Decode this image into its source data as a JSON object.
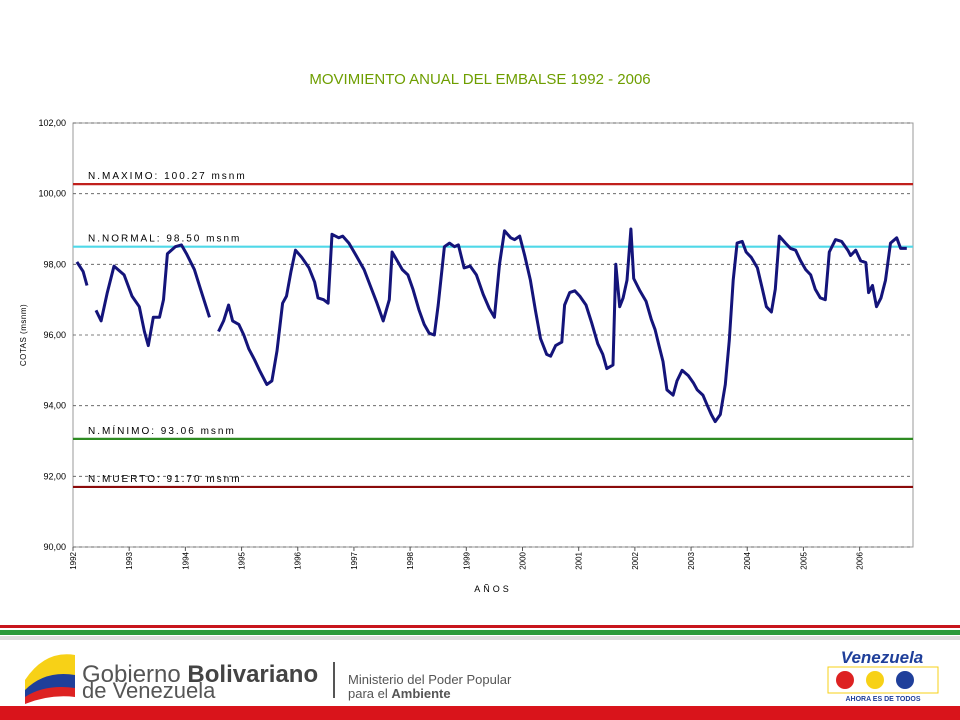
{
  "chart_data": {
    "type": "line",
    "title": "MOVIMIENTO ANUAL DEL EMBALSE 1992 - 2006",
    "xlabel": "AÑOS",
    "ylabel": "COTAS (msnm)",
    "xlim": [
      1992,
      2006.95
    ],
    "xticks": [
      1992,
      1993,
      1994,
      1995,
      1996,
      1997,
      1998,
      1999,
      2000,
      2001,
      2002,
      2003,
      2004,
      2005,
      2006
    ],
    "ylim": [
      90,
      102
    ],
    "yticks": [
      {
        "value": 90,
        "label": "90,00"
      },
      {
        "value": 92,
        "label": "92,00"
      },
      {
        "value": 94,
        "label": "94,00"
      },
      {
        "value": 96,
        "label": "96,00"
      },
      {
        "value": 98,
        "label": "98,00"
      },
      {
        "value": 100,
        "label": "100,00"
      },
      {
        "value": 102,
        "label": "102,00"
      }
    ],
    "grid": true,
    "reference_lines": [
      {
        "label": "N.MAXIMO: 100.27 msnm",
        "value": 100.27,
        "color": "#c0201c"
      },
      {
        "label": "N.NORMAL: 98.50 msnm",
        "value": 98.5,
        "color": "#4fd8e8"
      },
      {
        "label": "N.MÍNIMO: 93.06 msnm",
        "value": 93.06,
        "color": "#2e8b22"
      },
      {
        "label": "N.MUERTO: 91.70 msnm",
        "value": 91.7,
        "color": "#8b0a0a"
      }
    ],
    "series": [
      {
        "color": "#14147a",
        "x": [
          1992.07,
          1992.18,
          1992.25,
          null,
          1992.41,
          1992.5,
          1992.61,
          1992.73,
          1992.91,
          1993.05,
          1993.18,
          1993.27,
          1993.34,
          1993.43,
          1993.54,
          1993.61,
          1993.68,
          1993.82,
          1993.93,
          1994.02,
          1994.16,
          1994.27,
          1994.43,
          null,
          1994.59,
          1994.68,
          1994.77,
          1994.84,
          1994.95,
          1995.04,
          1995.13,
          1995.23,
          1995.32,
          1995.45,
          1995.54,
          1995.63,
          1995.73,
          1995.8,
          1995.88,
          1995.96,
          1996.07,
          1996.2,
          1996.3,
          1996.36,
          1996.46,
          1996.54,
          1996.61,
          1996.73,
          1996.8,
          1996.91,
          1997.02,
          1997.18,
          1997.29,
          1997.41,
          1997.52,
          1997.63,
          1997.68,
          1997.79,
          1997.86,
          1997.96,
          1998.05,
          1998.16,
          1998.25,
          1998.34,
          1998.43,
          1998.5,
          1998.61,
          1998.7,
          1998.79,
          1998.86,
          1998.96,
          1999.07,
          1999.18,
          1999.3,
          1999.41,
          1999.5,
          1999.59,
          1999.68,
          1999.79,
          1999.86,
          1999.95,
          2000.04,
          2000.14,
          2000.23,
          2000.32,
          2000.43,
          2000.5,
          2000.59,
          2000.7,
          2000.75,
          2000.84,
          2000.93,
          2001.02,
          2001.13,
          2001.23,
          2001.34,
          2001.43,
          2001.5,
          2001.61,
          2001.66,
          2001.73,
          2001.79,
          2001.86,
          2001.93,
          2001.98,
          2002.09,
          2002.2,
          2002.29,
          2002.36,
          2002.43,
          2002.5,
          2002.57,
          2002.68,
          2002.75,
          2002.84,
          2002.95,
          2003.04,
          2003.11,
          2003.21,
          2003.29,
          2003.36,
          2003.43,
          2003.52,
          2003.61,
          2003.68,
          2003.75,
          2003.82,
          2003.91,
          2003.98,
          2004.07,
          2004.18,
          2004.27,
          2004.34,
          2004.43,
          2004.5,
          2004.57,
          2004.68,
          2004.77,
          2004.86,
          2004.95,
          2005.04,
          2005.13,
          2005.21,
          2005.3,
          2005.39,
          2005.46,
          2005.57,
          2005.68,
          2005.79,
          2005.84,
          2005.93,
          2006.02,
          2006.11,
          2006.16,
          2006.23,
          2006.3,
          2006.38,
          2006.46,
          2006.55,
          2006.66,
          2006.73,
          2006.84
        ],
        "values": [
          98.07,
          97.8,
          97.4,
          null,
          96.7,
          96.4,
          97.2,
          97.95,
          97.7,
          97.1,
          96.8,
          96.1,
          95.7,
          96.5,
          96.5,
          97.0,
          98.3,
          98.5,
          98.55,
          98.3,
          97.85,
          97.3,
          96.5,
          null,
          96.1,
          96.4,
          96.85,
          96.4,
          96.3,
          96.0,
          95.6,
          95.3,
          95.0,
          94.6,
          94.7,
          95.55,
          96.9,
          97.1,
          97.8,
          98.4,
          98.2,
          97.9,
          97.5,
          97.05,
          97.0,
          96.9,
          98.85,
          98.75,
          98.8,
          98.6,
          98.3,
          97.85,
          97.4,
          96.9,
          96.4,
          97.0,
          98.35,
          98.05,
          97.85,
          97.7,
          97.3,
          96.7,
          96.3,
          96.05,
          96.0,
          96.85,
          98.5,
          98.6,
          98.5,
          98.55,
          97.9,
          97.95,
          97.7,
          97.15,
          96.75,
          96.5,
          98.0,
          98.95,
          98.75,
          98.7,
          98.8,
          98.25,
          97.55,
          96.7,
          95.9,
          95.45,
          95.4,
          95.7,
          95.8,
          96.85,
          97.2,
          97.25,
          97.1,
          96.85,
          96.35,
          95.75,
          95.45,
          95.05,
          95.15,
          98.0,
          96.8,
          97.05,
          97.55,
          99.0,
          97.6,
          97.25,
          96.95,
          96.45,
          96.15,
          95.7,
          95.25,
          94.45,
          94.3,
          94.7,
          95.0,
          94.85,
          94.65,
          94.45,
          94.3,
          94.0,
          93.75,
          93.55,
          93.75,
          94.6,
          95.85,
          97.55,
          98.6,
          98.65,
          98.35,
          98.2,
          97.9,
          97.3,
          96.8,
          96.65,
          97.3,
          98.8,
          98.6,
          98.45,
          98.4,
          98.1,
          97.85,
          97.7,
          97.3,
          97.05,
          97.0,
          98.35,
          98.7,
          98.65,
          98.4,
          98.25,
          98.4,
          98.1,
          98.05,
          97.2,
          97.4,
          96.8,
          97.05,
          97.55,
          98.6,
          98.75,
          98.45,
          98.45
        ]
      }
    ]
  },
  "footer": {
    "gov_line1": "Gobierno",
    "gov_line1b": "Bolivariano",
    "gov_line2": "de Venezuela",
    "ministry_line1": "Ministerio del Poder Popular",
    "ministry_line2a": "para el",
    "ministry_line2b": "Ambiente",
    "brand": "Venezuela",
    "slogan": "AHORA ES DE TODOS"
  }
}
